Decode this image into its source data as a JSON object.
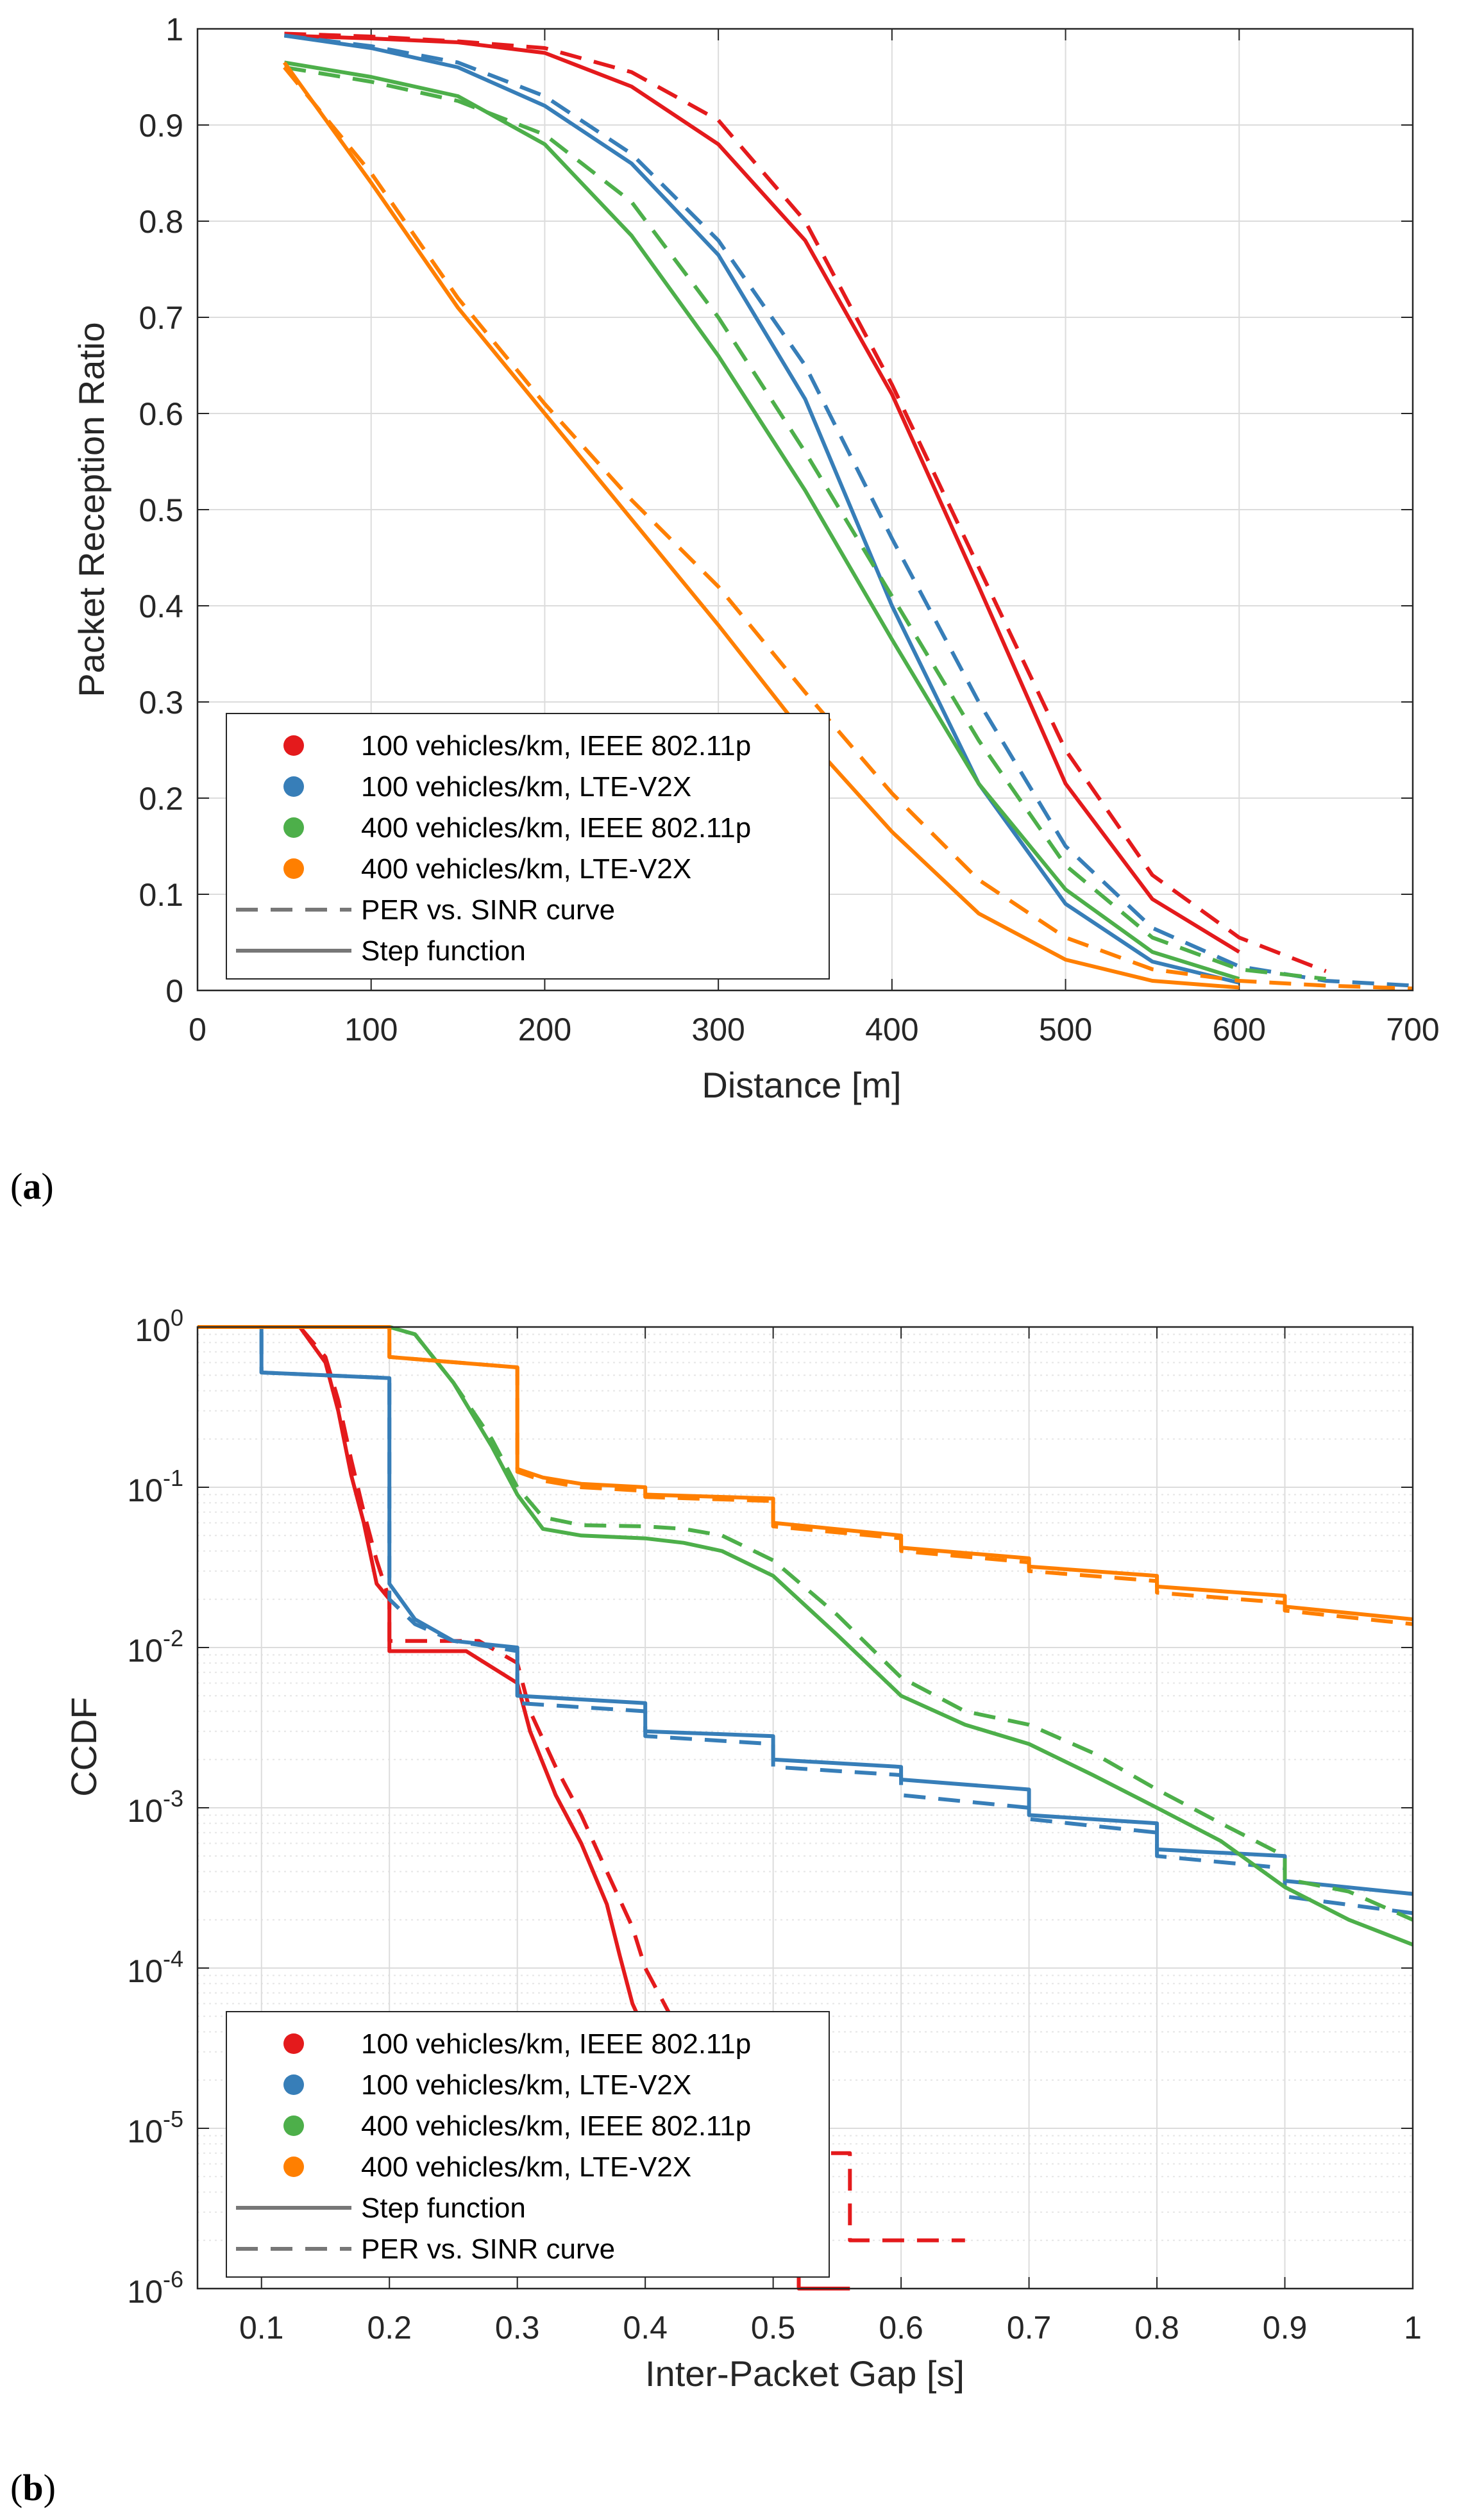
{
  "chart_data": [
    {
      "type": "line",
      "panel_label": "a",
      "xlabel": "Distance [m]",
      "ylabel": "Packet Reception Ratio",
      "xlim": [
        0,
        700
      ],
      "ylim": [
        0,
        1
      ],
      "xticks": [
        0,
        100,
        200,
        300,
        400,
        500,
        600,
        700
      ],
      "yticks": [
        0,
        0.1,
        0.2,
        0.3,
        0.4,
        0.5,
        0.6,
        0.7,
        0.8,
        0.9,
        1
      ],
      "ytick_labels": [
        "0",
        "0.1",
        "0.2",
        "0.3",
        "0.4",
        "0.5",
        "0.6",
        "0.7",
        "0.8",
        "0.9",
        "1"
      ],
      "grid": true,
      "legend_position": "bottom-left",
      "legend": [
        {
          "label": "100 vehicles/km, IEEE 802.11p",
          "kind": "marker",
          "color": "#e41a1c"
        },
        {
          "label": "100 vehicles/km, LTE-V2X",
          "kind": "marker",
          "color": "#377eb8"
        },
        {
          "label": "400 vehicles/km, IEEE 802.11p",
          "kind": "marker",
          "color": "#4daf4a"
        },
        {
          "label": "400 vehicles/km, LTE-V2X",
          "kind": "marker",
          "color": "#ff7f00"
        },
        {
          "label": "PER vs. SINR curve",
          "kind": "dashed",
          "color": "#777777"
        },
        {
          "label": "Step function",
          "kind": "solid",
          "color": "#777777"
        }
      ],
      "series": [
        {
          "name": "100 vehicles/km, IEEE 802.11p (Step function)",
          "color": "#e41a1c",
          "style": "solid",
          "x": [
            50,
            100,
            150,
            200,
            250,
            300,
            350,
            400,
            450,
            500,
            550,
            600
          ],
          "y": [
            0.993,
            0.99,
            0.986,
            0.975,
            0.94,
            0.88,
            0.78,
            0.62,
            0.42,
            0.215,
            0.095,
            0.04
          ]
        },
        {
          "name": "100 vehicles/km, IEEE 802.11p (PER vs. SINR curve)",
          "color": "#e41a1c",
          "style": "dashed",
          "x": [
            50,
            100,
            150,
            200,
            250,
            300,
            350,
            400,
            450,
            500,
            550,
            600,
            650
          ],
          "y": [
            0.995,
            0.992,
            0.987,
            0.98,
            0.955,
            0.905,
            0.8,
            0.63,
            0.44,
            0.25,
            0.12,
            0.055,
            0.02
          ]
        },
        {
          "name": "100 vehicles/km, LTE-V2X (Step function)",
          "color": "#377eb8",
          "style": "solid",
          "x": [
            50,
            100,
            150,
            200,
            250,
            300,
            350,
            400,
            450,
            500,
            550,
            600
          ],
          "y": [
            0.993,
            0.98,
            0.96,
            0.92,
            0.86,
            0.765,
            0.615,
            0.4,
            0.215,
            0.09,
            0.03,
            0.008
          ]
        },
        {
          "name": "100 vehicles/km, LTE-V2X (PER vs. SINR curve)",
          "color": "#377eb8",
          "style": "dashed",
          "x": [
            50,
            100,
            150,
            200,
            250,
            300,
            350,
            400,
            450,
            500,
            550,
            600,
            650,
            700
          ],
          "y": [
            0.993,
            0.982,
            0.965,
            0.93,
            0.87,
            0.78,
            0.65,
            0.47,
            0.3,
            0.15,
            0.065,
            0.025,
            0.01,
            0.005
          ]
        },
        {
          "name": "400 vehicles/km, IEEE 802.11p (Step function)",
          "color": "#4daf4a",
          "style": "solid",
          "x": [
            50,
            100,
            150,
            200,
            250,
            300,
            350,
            400,
            450,
            500,
            550,
            600
          ],
          "y": [
            0.965,
            0.95,
            0.93,
            0.88,
            0.785,
            0.66,
            0.52,
            0.365,
            0.215,
            0.105,
            0.04,
            0.012
          ]
        },
        {
          "name": "400 vehicles/km, IEEE 802.11p (PER vs. SINR curve)",
          "color": "#4daf4a",
          "style": "dashed",
          "x": [
            50,
            100,
            150,
            200,
            250,
            300,
            350,
            400,
            450,
            500,
            550,
            600,
            650
          ],
          "y": [
            0.96,
            0.945,
            0.925,
            0.89,
            0.82,
            0.7,
            0.56,
            0.41,
            0.26,
            0.13,
            0.055,
            0.022,
            0.012
          ]
        },
        {
          "name": "400 vehicles/km, LTE-V2X (Step function)",
          "color": "#ff7f00",
          "style": "solid",
          "x": [
            50,
            100,
            150,
            200,
            250,
            300,
            350,
            400,
            450,
            500,
            550,
            600
          ],
          "y": [
            0.965,
            0.84,
            0.71,
            0.6,
            0.49,
            0.38,
            0.265,
            0.165,
            0.08,
            0.032,
            0.01,
            0.003
          ]
        },
        {
          "name": "400 vehicles/km, LTE-V2X (PER vs. SINR curve)",
          "color": "#ff7f00",
          "style": "dashed",
          "x": [
            50,
            100,
            150,
            200,
            250,
            300,
            350,
            400,
            450,
            500,
            550,
            600,
            650,
            700
          ],
          "y": [
            0.96,
            0.85,
            0.72,
            0.61,
            0.51,
            0.42,
            0.31,
            0.205,
            0.115,
            0.055,
            0.022,
            0.01,
            0.005,
            0.002
          ]
        }
      ]
    },
    {
      "type": "line",
      "panel_label": "b",
      "xlabel": "Inter-Packet Gap [s]",
      "ylabel": "CCDF",
      "xlim": [
        0.05,
        1
      ],
      "ylim": [
        1e-06,
        1
      ],
      "yscale": "log",
      "xticks": [
        0.1,
        0.2,
        0.3,
        0.4,
        0.5,
        0.6,
        0.7,
        0.8,
        0.9,
        1
      ],
      "xtick_labels": [
        "0.1",
        "0.2",
        "0.3",
        "0.4",
        "0.5",
        "0.6",
        "0.7",
        "0.8",
        "0.9",
        "1"
      ],
      "yticks": [
        1e-06,
        1e-05,
        0.0001,
        0.001,
        0.01,
        0.1,
        1
      ],
      "ytick_exponents": [
        "-6",
        "-5",
        "-4",
        "-3",
        "-2",
        "-1",
        "0"
      ],
      "ytick_base": "10",
      "grid": true,
      "legend_position": "bottom-left",
      "legend": [
        {
          "label": "100 vehicles/km, IEEE 802.11p",
          "kind": "marker",
          "color": "#e41a1c"
        },
        {
          "label": "100 vehicles/km, LTE-V2X",
          "kind": "marker",
          "color": "#377eb8"
        },
        {
          "label": "400 vehicles/km, IEEE 802.11p",
          "kind": "marker",
          "color": "#4daf4a"
        },
        {
          "label": "400 vehicles/km, LTE-V2X",
          "kind": "marker",
          "color": "#ff7f00"
        },
        {
          "label": "Step function",
          "kind": "solid",
          "color": "#777777"
        },
        {
          "label": "PER vs. SINR curve",
          "kind": "dashed",
          "color": "#777777"
        }
      ],
      "series": [
        {
          "name": "100 vehicles/km, IEEE 802.11p (Step function)",
          "color": "#e41a1c",
          "style": "solid",
          "x": [
            0.05,
            0.13,
            0.15,
            0.16,
            0.17,
            0.18,
            0.19,
            0.2,
            0.2,
            0.26,
            0.3,
            0.31,
            0.33,
            0.35,
            0.37,
            0.38,
            0.39,
            0.4,
            0.42,
            0.44,
            0.46,
            0.48,
            0.5,
            0.51,
            0.52,
            0.52,
            0.56
          ],
          "y": [
            1,
            1,
            0.6,
            0.3,
            0.12,
            0.06,
            0.025,
            0.02,
            0.0095,
            0.0095,
            0.006,
            0.003,
            0.0012,
            0.0006,
            0.00025,
            0.00012,
            6e-05,
            4e-05,
            2.5e-05,
            1.5e-05,
            8e-06,
            5e-06,
            3e-06,
            3e-06,
            2e-06,
            1e-06,
            1e-06
          ]
        },
        {
          "name": "100 vehicles/km, IEEE 802.11p (PER vs. SINR curve)",
          "color": "#e41a1c",
          "style": "dashed",
          "x": [
            0.05,
            0.13,
            0.15,
            0.16,
            0.17,
            0.18,
            0.19,
            0.2,
            0.2,
            0.27,
            0.3,
            0.31,
            0.33,
            0.35,
            0.37,
            0.39,
            0.4,
            0.42,
            0.44,
            0.46,
            0.48,
            0.5,
            0.53,
            0.56,
            0.56,
            0.56,
            0.65
          ],
          "y": [
            1,
            1,
            0.65,
            0.35,
            0.15,
            0.07,
            0.035,
            0.02,
            0.011,
            0.011,
            0.008,
            0.004,
            0.0018,
            0.0009,
            0.0004,
            0.00018,
            0.0001,
            5e-05,
            3e-05,
            2e-05,
            1.2e-05,
            8e-06,
            7e-06,
            7e-06,
            4e-06,
            2e-06,
            2e-06
          ]
        },
        {
          "name": "100 vehicles/km, LTE-V2X (Step function)",
          "color": "#377eb8",
          "style": "solid",
          "x": [
            0.05,
            0.1,
            0.1,
            0.2,
            0.2,
            0.22,
            0.25,
            0.3,
            0.3,
            0.4,
            0.4,
            0.5,
            0.5,
            0.6,
            0.6,
            0.7,
            0.7,
            0.8,
            0.8,
            0.9,
            0.9,
            1
          ],
          "y": [
            1,
            1,
            0.52,
            0.48,
            0.025,
            0.015,
            0.011,
            0.01,
            0.005,
            0.0045,
            0.003,
            0.0028,
            0.002,
            0.0018,
            0.0015,
            0.0013,
            0.0009,
            0.0008,
            0.00055,
            0.0005,
            0.00035,
            0.00029
          ]
        },
        {
          "name": "100 vehicles/km, LTE-V2X (PER vs. SINR curve)",
          "color": "#377eb8",
          "style": "dashed",
          "x": [
            0.05,
            0.1,
            0.1,
            0.2,
            0.2,
            0.22,
            0.25,
            0.3,
            0.3,
            0.4,
            0.4,
            0.5,
            0.5,
            0.6,
            0.6,
            0.7,
            0.7,
            0.8,
            0.8,
            0.9,
            0.9,
            1
          ],
          "y": [
            1,
            1,
            0.52,
            0.48,
            0.02,
            0.014,
            0.011,
            0.0095,
            0.0045,
            0.004,
            0.0028,
            0.0025,
            0.0018,
            0.0016,
            0.0012,
            0.001,
            0.00085,
            0.0007,
            0.0005,
            0.00042,
            0.00028,
            0.00022
          ]
        },
        {
          "name": "400 vehicles/km, IEEE 802.11p (Step function)",
          "color": "#4daf4a",
          "style": "solid",
          "x": [
            0.05,
            0.2,
            0.22,
            0.25,
            0.28,
            0.3,
            0.32,
            0.35,
            0.4,
            0.43,
            0.46,
            0.5,
            0.55,
            0.6,
            0.65,
            0.7,
            0.75,
            0.8,
            0.85,
            0.9,
            0.95,
            1
          ],
          "y": [
            1,
            1,
            0.9,
            0.45,
            0.18,
            0.09,
            0.055,
            0.05,
            0.048,
            0.045,
            0.04,
            0.028,
            0.012,
            0.005,
            0.0033,
            0.0025,
            0.0016,
            0.001,
            0.00062,
            0.00032,
            0.0002,
            0.00014
          ]
        },
        {
          "name": "400 vehicles/km, IEEE 802.11p (PER vs. SINR curve)",
          "color": "#4daf4a",
          "style": "dashed",
          "x": [
            0.05,
            0.2,
            0.22,
            0.25,
            0.28,
            0.3,
            0.32,
            0.35,
            0.4,
            0.43,
            0.46,
            0.5,
            0.55,
            0.6,
            0.65,
            0.7,
            0.75,
            0.8,
            0.85,
            0.9,
            0.9,
            0.95,
            1
          ],
          "y": [
            1,
            1,
            0.9,
            0.45,
            0.2,
            0.1,
            0.065,
            0.058,
            0.057,
            0.055,
            0.05,
            0.035,
            0.016,
            0.0065,
            0.004,
            0.0033,
            0.0022,
            0.0013,
            0.0008,
            0.0005,
            0.00036,
            0.0003,
            0.0002
          ]
        },
        {
          "name": "400 vehicles/km, LTE-V2X (Step function)",
          "color": "#ff7f00",
          "style": "solid",
          "x": [
            0.05,
            0.2,
            0.2,
            0.3,
            0.3,
            0.32,
            0.35,
            0.4,
            0.4,
            0.5,
            0.5,
            0.6,
            0.6,
            0.7,
            0.7,
            0.8,
            0.8,
            0.9,
            0.9,
            1
          ],
          "y": [
            1,
            1,
            0.65,
            0.56,
            0.13,
            0.115,
            0.105,
            0.1,
            0.09,
            0.085,
            0.06,
            0.05,
            0.042,
            0.036,
            0.032,
            0.028,
            0.024,
            0.021,
            0.018,
            0.015
          ]
        },
        {
          "name": "400 vehicles/km, LTE-V2X (PER vs. SINR curve)",
          "color": "#ff7f00",
          "style": "dashed",
          "x": [
            0.05,
            0.2,
            0.2,
            0.3,
            0.3,
            0.32,
            0.35,
            0.4,
            0.4,
            0.5,
            0.5,
            0.6,
            0.6,
            0.7,
            0.7,
            0.8,
            0.8,
            0.9,
            0.9,
            1
          ],
          "y": [
            1,
            1,
            0.65,
            0.56,
            0.125,
            0.11,
            0.1,
            0.095,
            0.087,
            0.082,
            0.057,
            0.048,
            0.04,
            0.034,
            0.03,
            0.026,
            0.022,
            0.019,
            0.017,
            0.014
          ]
        }
      ]
    }
  ],
  "colors": {
    "red": "#e41a1c",
    "blue": "#377eb8",
    "green": "#4daf4a",
    "orange": "#ff7f00",
    "legend_gray": "#777777"
  }
}
